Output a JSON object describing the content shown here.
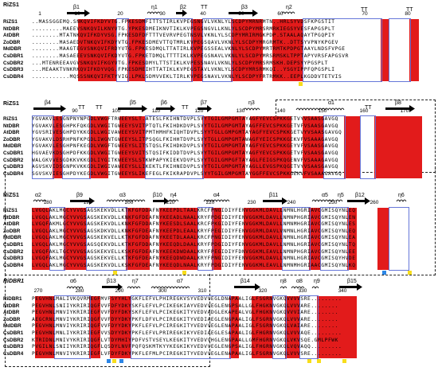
{
  "colors": {
    "identical": "#e21b1b",
    "similar_box": "#6677d9",
    "yellow_marker": "#f7dd1b",
    "blue_marker": "#2c86e6"
  },
  "blocks": [
    {
      "ref": "RiZS1",
      "ref_italic": false,
      "ss_labels": [
        "β1",
        "η1",
        "β2",
        "TT",
        "β3",
        "η2",
        "TT",
        "TT"
      ],
      "ticks": [
        "1",
        "10",
        "20",
        "30",
        "40",
        "50",
        "60",
        "70",
        "80"
      ],
      "names": [
        "RiZS1",
        "NtDBR",
        "AtDBR",
        "ZoDBR",
        "MdDBR",
        "CsDBR1",
        "CsDBR2",
        "CsDBR3",
        "CsDBR4"
      ],
      "seqs": [
        "..MASSGGEMQ.SNKQVIFKDYVTG.FPKESDMFITTSTIRLKVPEGSNGVLVKNLYLSCDPYMRNRMTN..HRLSYVDSFKPGSTIT",
        ".........MAEEVSNKQVILKNYVTG.YPKESDMEIKNVTIKLKVPEGSNGVLLKNLYLSCDPYMRSRMRKIEGSYVESFAPGSPLT",
        "........MTATNKQVIFKDYVSG.FPKESDFDFTTTVEVRVPEGTNSVLVKNLYLSCDPYMRIRMGKPDP.STAALAQAYTPGQPIY",
        "........MASAEDVTNKQVIFKDYVTG.FPKESDMEVTTQTMRLKVPEGSQAVLVKNLYLSCDPYMRGRMTK..DTTSYVPNYKPGEV",
        "........MAAGTEGVSNKQVIFRDYVTG.FPKESDMQLTTATIRLKVPEGSSEALVKNLYLSCDPYMRTRMTKPDPGTAAYLNDSFVPGE",
        "........MASAEEEVSNKQVIFKDYVTG.FPKETDMQLTTTTIKLKVPEGSNAVLVKNLYLSCDPYMRSRMSKLTPPTAPYVRSFAPGSVR",
        "...MTENREEAVGVSNKQVIFKGYVTG.FPKESDMYLTTSTIKLKVPESSNAVLVKNLYLSCDPYMRSRMSKH.DEPSYYPGSPLT",
        "...MEAAKTVNKRKQVIFKDYVQG.FPKESDMEIHTTATIKLKVPEGSTAVLVKNLYLSCDPYMRSRMKQI..YSGYIPPFQPGSPLI",
        "...........MQSSSNKQVIFKTYVIG.LPKLSDMVVEKLTIRLKVPEGSNAVLVKNLYLSCDPYFRTRMKK..EEPLKGDDVTETVIS"
      ],
      "nameTop": 21
    },
    {
      "ref": "RiZS1",
      "ref_italic": false,
      "ss_labels": [
        "β4",
        "TT",
        "TT",
        "β5",
        "β6",
        "TT",
        "β7",
        "η3",
        "α1",
        "TT",
        "β8"
      ],
      "ticks": [
        "90",
        "100",
        "110",
        "120",
        "130",
        "140",
        "150",
        "160",
        "170"
      ],
      "names": [
        "RiZS1",
        "NtDBR",
        "AtDBR",
        "ZoDBR",
        "MdDBR",
        "CsDBR1",
        "CsDBR2",
        "CsDBR3",
        "CsDBR4"
      ],
      "seqs": [
        "YGVAKVLESGNPNYNPGDLVWGFTRWEEYSLT.ATESLFKIHNTDVPLSYYTGILGMPGMTAYAGFYEVCSPKKGETVYVSAASGAVGQ",
        "YGVAKVLESGHPKFQKGDLVWGITGWEEYSVITPTQTLFKIHDKDVPLSYYTGILGMPGMTAYAGFFEVCSPKKGETVFVSAASGAVGQ",
        "YGVSRIVESGHPDYKKGDLLWGIVAWEEYSVITPMTHMHFKIQHTDVPLSYYTGLLGMPGMTAYAGFYEVCSPKKGETVYVSAASGAVGQ",
        "YGVAKVLDSRHPNFKPGDLIWGNTGWEEYSLITPSQGLFKIHHTDVPLSYYTGLLGMPGMTAWAGFYEICSPKKGEKVFVSAAAGAVGQ",
        "YGVAKVLESGHPNFKEGDLVWGFTGWEEYSLITSTQSLFKIHDKDVPLSYYTGILGMPGMTAYAGFYEVCSPKKGEYVFVSAASGAVGQ",
        "HGVAEVKDSGHPDFKKGDLVWGITGWEEYSVITSTQSIFKIDDTDVPLSYYTGILGMPGMTAYAGFYEVCSPKKGETVFVSAASGAVGQ",
        "WALGKVVESGDKKVKKGDLIYGITKWEEYSLSTKWPAPYKIEKVDVPLSYYTGILGMPGFTAYAGLFEIGSPKQGENVFVSAAAGAVGQ",
        "AGVSKVIDSGNPKVKKGDLIWGIVAWEEYSLLIKEKTLFKIHNEDVPLSYYTGILGMPGMTAYAGLLEVGSPKQGETVYVSAASGAVGQ",
        "SGVSKVIESGHPDYKEGDLVWGITGWEEYSLIKEFEGLFKIKRAPDVPLSYYTGILGMPGMTAYGGFFEVCSPKKGEKVFVSAAAGAVGQ"
      ]
    },
    {
      "ref": "RiZS1",
      "ref_italic": false,
      "ss_labels": [
        "α2",
        "β9",
        "α3",
        "β10",
        "η4",
        "α4",
        "β11",
        "α5",
        "η5",
        "β12",
        "η6"
      ],
      "ticks": [
        "180",
        "190",
        "200",
        "210",
        "220",
        "230",
        "240",
        "250",
        "260"
      ],
      "names": [
        "RiZS1",
        "NtDBR",
        "AtDBR",
        "ZoDBR",
        "MdDBR",
        "CsDBR1",
        "CsDBR2",
        "CsDBR3",
        "CsDBR4"
      ],
      "seqs": [
        "LVGQLAKLMGCYVVGSAGSKEKVDLLKTKFGFDDAFNYKEEPDLTAALKRCFPNGIDIYFENVGGKMLDAVLLNMNLHGRIAVCGMISQYNLEQ",
        "LVGQLAKLMGCYVVGSAGSKEKVDLLKNKFGFDEAFNYKEEADLNAALKRYFPDGIDIYFENVGGKMLDAVLLNMNPHGRIAVCGMISQYNLEN",
        "LVGQFAKMLGCYVVGSAGSKEKVDLLKNKFGFDDAFNYKEESDLSAALKRCFPKGIDIYFENVGGKMLDAVLLNMNMHGRIAVCGMISQYNLES",
        "LVGQLAKLMGCYVVGSAGSKDKVDLLKNKFGFDEAFNYKEEPDLEAALKRYFPEGIDIYFENVGGRMLDAVLVNMNLHGRIAVCGMISQYNLEQ",
        "LVGQLAKLMGCYVVGSAGSKEKVELLKTKFGFDDAFNYKEETDLAAALKRCFPNGIDIYFENVGGKMLDAVLLNMNLHGRIAVCGMISQYNLEA",
        "LVGQLAKLMGCYVVGSAGSQEKVDLLKTKFGFDDAFNYKEEQDLDAALKRYFPDGIDIYFENVGGKMLDAVLLNMNLHGRIAVCGMISQYNLTQ",
        "LVGQFAKLTGCYVVGSAGSKEKVELLKSKFGFDEAFNYKEEKDWDAALKRYFPEGIDIYFDNVGGKMLEAVLLNMNPHGRIAVCGMISQYNLEE",
        "LVGQFAKLMGCYVVGSAGSKEKVELLKTKFGFDEAFNYKEEQDWDAALKRYFPNGIDIYFENVGGKMLDAVLLNMNLHGRIAVCGMISQYHVDE",
        "LVGQLAKLMGCYVVGSAGSKEKVDLLKSKFGFDEAFNYKEEQDLNAALKRYFPDGIDIYFENVGGKMLEAVLLNMNMHGRIAACGMISQYNLKQ"
      ]
    },
    {
      "ref": "RiDBR1",
      "ref_italic": true,
      "ss_labels": [
        "α6",
        "β13",
        "η7",
        "α7",
        "β14",
        "η8",
        "α8",
        "η9",
        "β15"
      ],
      "ticks": [
        "270",
        "280",
        "290",
        "300",
        "310",
        "320",
        "330",
        "340"
      ],
      "names": [
        "RiDBR1",
        "NtDBR",
        "AtDBR",
        "ZoDBR",
        "MdDBR",
        "CsDBR1",
        "CsDBR2",
        "CsDBR3",
        "CsDBR4"
      ],
      "seqs": [
        "PEGVHNLMALIVKQVRMEGFMVFSYYHLYGKFLEFVLPHIREGKVSYVEDVVEGLDNAPAALIGLFSGRNVGKQVVVVSRE.........",
        "PEGVHNLSNIIYKRIRIQGFVVFDFYDKYSKFLEFVLPCIKEGKIAYVEDVVEGLENGPSALLGLFHGKNVGKQLVVVARE........",
        "PEGVHNLMNVIYKRIRIEGFVVFDYFDKYSKFLEFVLPCIKEGKITYVEDVADGLEKAPEALVGLFHGKNVGKQVVVIARE........",
        "AEGCRNLMNVIYKRIRIQGFVVFDYYDKYPKFLDFVLPCIREGKITYVEDIAEGLENGPAALIGLFSGRNVGKQLVVVARE........",
        "PEGVHNLMNVIYKRIRIQGFVVFDYYDKYPKFLEFVLPCIREGKITYVEDVVEGLENAPAALIGLFSGRNVGKQLVAIARE........",
        "PEGVHNLMNLIYKRIRIEGFVVSDYYDKYPKFLEFVLPRIREGKIKYVEDIAEGLESAPAALIGLFHGRNVGKQLVVVAQE.........",
        "KTRIDNLMNIVYKRIRIQGFLVTDYMHIYPDFVSTVSEYLKEGKITYVEDVVHGLENGPAALLGMFHGRNVGKQLVKVSQE.GMLPFWK",
        "PVGILNLSNIIYKRIRIQGFLQSDYLNVFPQFQSKMTKYYKEGKIKYVEDVVEGLENGPSALIGLFHGRNVGKQLVQVAQQ.........",
        "PEGVHNLMNVIYKRIRIEGFLVFDYFDKYPKFLEFMLPCIREGKITYVEDVVEGLENAPAALIGLFSGRNVGKQLVVVSRE........."
      ]
    }
  ]
}
